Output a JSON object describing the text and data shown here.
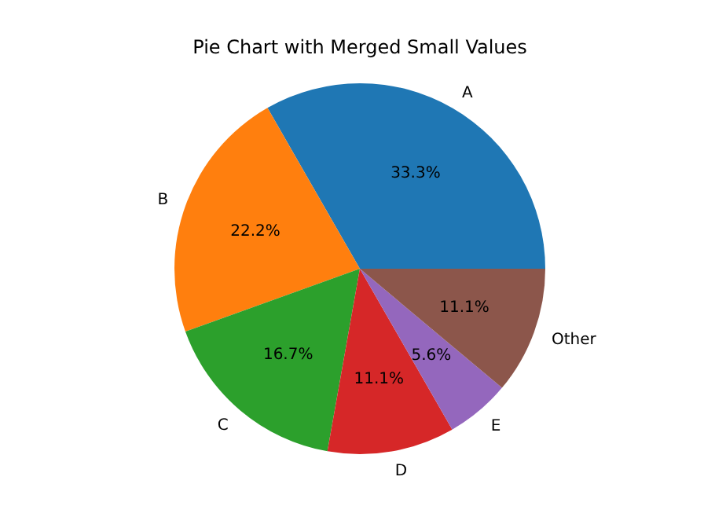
{
  "chart_data": {
    "type": "pie",
    "title": "Pie Chart with Merged Small Values",
    "categories": [
      "A",
      "B",
      "C",
      "D",
      "E",
      "Other"
    ],
    "values": [
      33.3,
      22.2,
      16.7,
      11.1,
      5.6,
      11.1
    ],
    "colors": [
      "#1f77b4",
      "#ff7f0e",
      "#2ca02c",
      "#d62728",
      "#9467bd",
      "#8c564b"
    ],
    "value_labels": [
      "33.3%",
      "22.2%",
      "16.7%",
      "11.1%",
      "5.6%",
      "11.1%"
    ]
  }
}
